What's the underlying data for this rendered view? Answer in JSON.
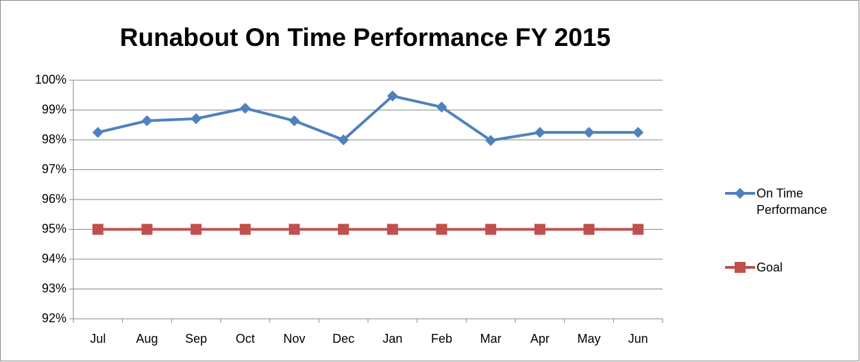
{
  "chart_data": {
    "type": "line",
    "title": "Runabout On Time Performance FY 2015",
    "categories": [
      "Jul",
      "Aug",
      "Sep",
      "Oct",
      "Nov",
      "Dec",
      "Jan",
      "Feb",
      "Mar",
      "Apr",
      "May",
      "Jun"
    ],
    "series": [
      {
        "name": "On Time Performance",
        "color": "#4f81bd",
        "marker": "diamond",
        "values": [
          98.25,
          98.64,
          98.71,
          99.06,
          98.64,
          98.0,
          99.47,
          99.1,
          97.98,
          98.25,
          98.25,
          98.25
        ]
      },
      {
        "name": "Goal",
        "color": "#c0504d",
        "marker": "square",
        "values": [
          95,
          95,
          95,
          95,
          95,
          95,
          95,
          95,
          95,
          95,
          95,
          95
        ]
      }
    ],
    "ylim": [
      92,
      100
    ],
    "yticks": [
      {
        "value": 92,
        "label": "92%"
      },
      {
        "value": 93,
        "label": "93%"
      },
      {
        "value": 94,
        "label": "94%"
      },
      {
        "value": 95,
        "label": "95%"
      },
      {
        "value": 96,
        "label": "96%"
      },
      {
        "value": 97,
        "label": "97%"
      },
      {
        "value": 98,
        "label": "98%"
      },
      {
        "value": 99,
        "label": "99%"
      },
      {
        "value": 100,
        "label": "100%"
      }
    ],
    "grid": true,
    "legend": "right"
  }
}
